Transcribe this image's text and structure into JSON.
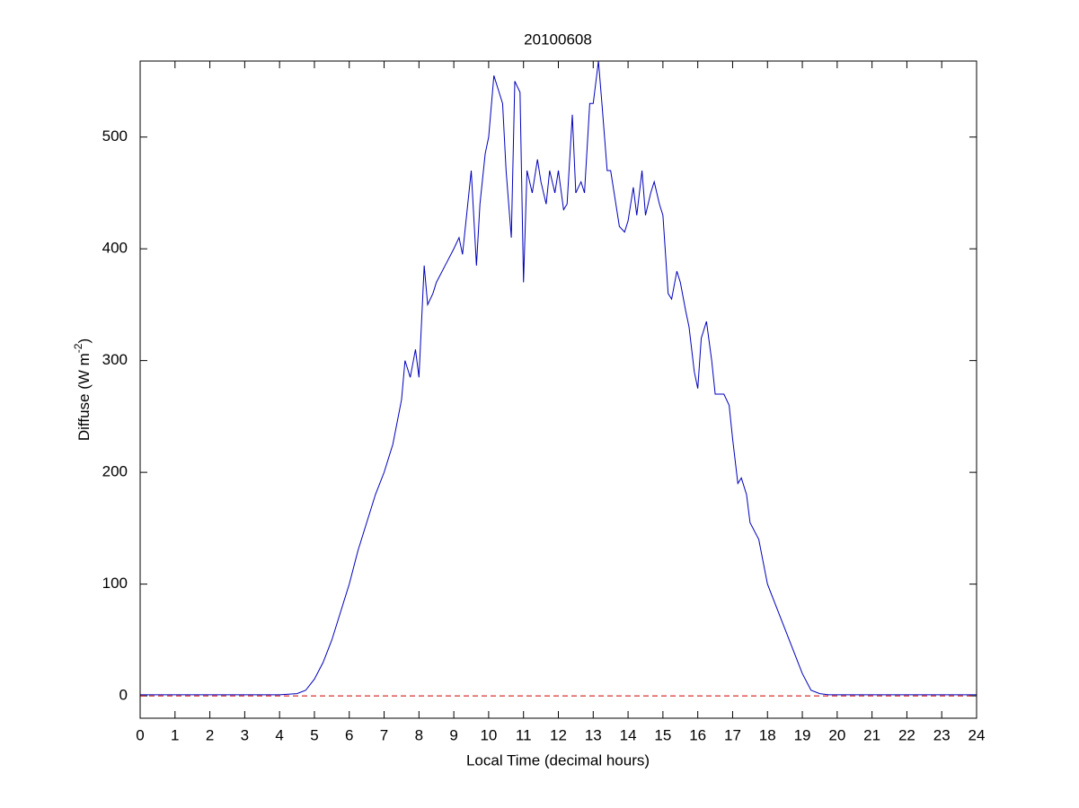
{
  "chart_data": {
    "type": "line",
    "title": "20100608",
    "xlabel": "Local Time (decimal hours)",
    "ylabel": {
      "text": "Diffuse (W m",
      "superscript": "-2",
      "suffix": ")"
    },
    "xlim": [
      0,
      24
    ],
    "ylim": [
      -20,
      568
    ],
    "xticks": [
      0,
      1,
      2,
      3,
      4,
      5,
      6,
      7,
      8,
      9,
      10,
      11,
      12,
      13,
      14,
      15,
      16,
      17,
      18,
      19,
      20,
      21,
      22,
      23,
      24
    ],
    "yticks": [
      0,
      100,
      200,
      300,
      400,
      500
    ],
    "series": [
      {
        "color": "#0000bb",
        "dash": "solid",
        "x": [
          0,
          1,
          2,
          3,
          4,
          4.5,
          4.75,
          5,
          5.25,
          5.5,
          5.75,
          6,
          6.25,
          6.5,
          6.75,
          7,
          7.25,
          7.5,
          7.6,
          7.75,
          7.9,
          8,
          8.15,
          8.25,
          8.4,
          8.5,
          8.75,
          9,
          9.15,
          9.25,
          9.4,
          9.5,
          9.65,
          9.75,
          9.9,
          10,
          10.15,
          10.25,
          10.4,
          10.5,
          10.65,
          10.75,
          10.9,
          11,
          11.1,
          11.25,
          11.4,
          11.5,
          11.65,
          11.75,
          11.9,
          12,
          12.15,
          12.25,
          12.4,
          12.5,
          12.65,
          12.75,
          12.9,
          13,
          13.15,
          13.25,
          13.4,
          13.5,
          13.65,
          13.75,
          13.9,
          14,
          14.15,
          14.25,
          14.4,
          14.5,
          14.65,
          14.75,
          14.9,
          15,
          15.15,
          15.25,
          15.4,
          15.5,
          15.65,
          15.75,
          15.9,
          16,
          16.1,
          16.25,
          16.4,
          16.5,
          16.75,
          16.9,
          17,
          17.15,
          17.25,
          17.4,
          17.5,
          17.75,
          18,
          18.25,
          18.5,
          18.75,
          19,
          19.25,
          19.5,
          19.75,
          20,
          21,
          22,
          23,
          24
        ],
        "values": [
          1,
          1,
          1,
          1,
          1,
          2,
          5,
          15,
          30,
          50,
          75,
          100,
          130,
          155,
          180,
          200,
          225,
          265,
          300,
          285,
          310,
          285,
          385,
          350,
          360,
          370,
          385,
          400,
          410,
          395,
          440,
          470,
          385,
          440,
          485,
          500,
          555,
          545,
          530,
          470,
          410,
          550,
          540,
          370,
          470,
          450,
          480,
          460,
          440,
          470,
          450,
          470,
          435,
          440,
          520,
          450,
          460,
          450,
          530,
          530,
          568,
          530,
          470,
          470,
          440,
          420,
          415,
          425,
          455,
          430,
          470,
          430,
          450,
          460,
          440,
          430,
          360,
          355,
          380,
          370,
          345,
          330,
          290,
          275,
          320,
          335,
          300,
          270,
          270,
          260,
          230,
          190,
          195,
          180,
          155,
          140,
          100,
          80,
          60,
          40,
          20,
          5,
          2,
          1,
          1,
          1,
          1,
          1,
          1
        ]
      },
      {
        "color": "#cc0000",
        "dash": "dashed",
        "x": [
          0,
          24
        ],
        "values": [
          0,
          0
        ]
      }
    ]
  }
}
